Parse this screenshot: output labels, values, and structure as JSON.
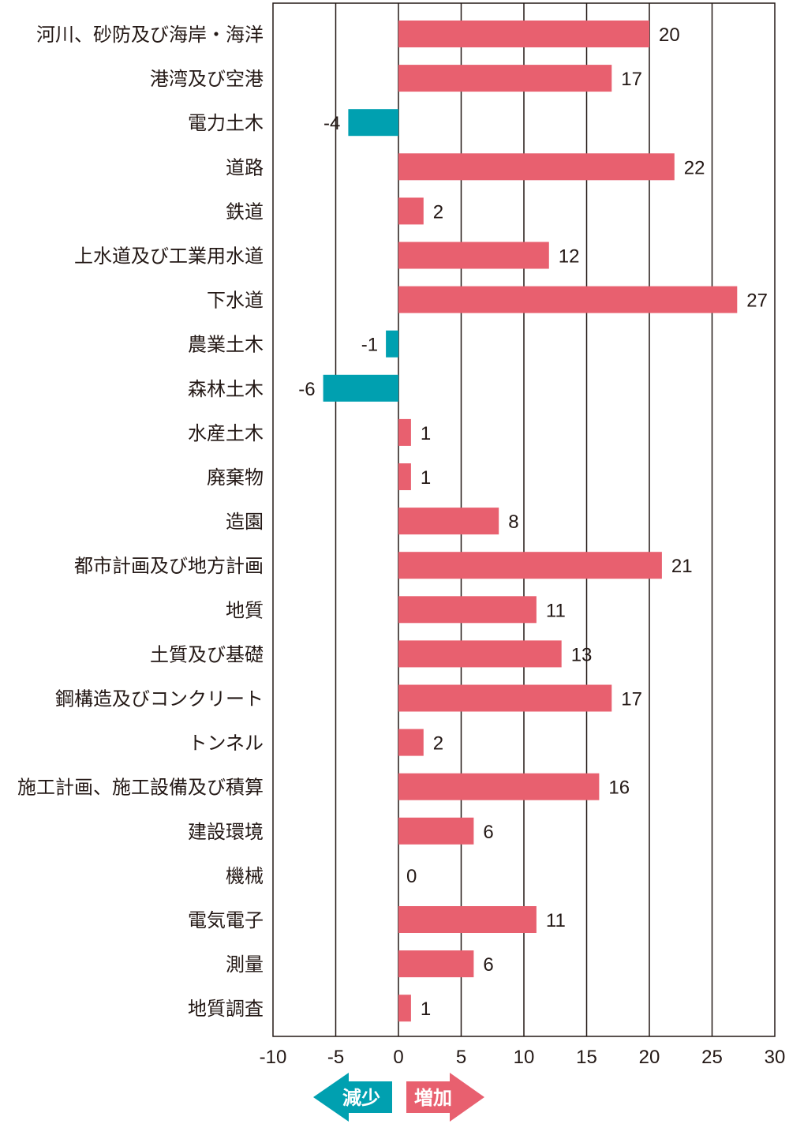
{
  "chart_data": {
    "type": "bar",
    "orientation": "horizontal",
    "categories": [
      "河川、砂防及び海岸・海洋",
      "港湾及び空港",
      "電力土木",
      "道路",
      "鉄道",
      "上水道及び工業用水道",
      "下水道",
      "農業土木",
      "森林土木",
      "水産土木",
      "廃棄物",
      "造園",
      "都市計画及び地方計画",
      "地質",
      "土質及び基礎",
      "鋼構造及びコンクリート",
      "トンネル",
      "施工計画、施工設備及び積算",
      "建設環境",
      "機械",
      "電気電子",
      "測量",
      "地質調査"
    ],
    "values": [
      20,
      17,
      -4,
      22,
      2,
      12,
      27,
      -1,
      -6,
      1,
      1,
      8,
      21,
      11,
      13,
      17,
      2,
      16,
      6,
      0,
      11,
      6,
      1
    ],
    "value_labels": [
      "20",
      "17",
      "-4",
      "22",
      "2",
      "12",
      "27",
      "-1",
      "-6",
      "1",
      "1",
      "8",
      "21",
      "11",
      "13",
      "17",
      "2",
      "16",
      "6",
      "0",
      "11",
      "6",
      "1"
    ],
    "xlim": [
      -10,
      30
    ],
    "xticks": [
      -10,
      -5,
      0,
      5,
      10,
      15,
      20,
      25,
      30
    ],
    "xtick_labels": [
      "-10",
      "-5",
      "0",
      "5",
      "10",
      "15",
      "20",
      "25",
      "30"
    ],
    "grid": "vertical",
    "legend": {
      "decrease_label": "減少",
      "increase_label": "増加"
    },
    "colors": {
      "increase": "#e8606f",
      "decrease": "#00a0b0",
      "axis": "#231815",
      "text": "#231815"
    }
  }
}
